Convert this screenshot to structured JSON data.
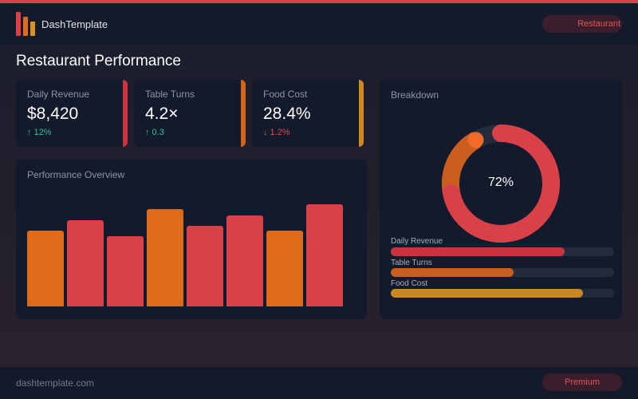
{
  "app": {
    "brand": "DashTemplate",
    "header_badge": "Restaurant",
    "page_title": "Restaurant Performance"
  },
  "colors": {
    "red": "#d94048",
    "orange": "#e06a18",
    "amber": "#c8831e",
    "green": "#2bc48a"
  },
  "kpis": [
    {
      "label": "Daily Revenue",
      "value": "$8,420",
      "delta": "↑ 12%",
      "trend": "up",
      "accent": "#c9343e"
    },
    {
      "label": "Table Turns",
      "value": "4.2×",
      "delta": "↑ 0.3",
      "trend": "up",
      "accent": "#d3641a"
    },
    {
      "label": "Food Cost",
      "value": "28.4%",
      "delta": "↓ 1.2%",
      "trend": "down",
      "accent": "#d08a1c"
    }
  ],
  "performance": {
    "title": "Performance Overview"
  },
  "chart_data": {
    "type": "bar",
    "title": "Performance Overview",
    "categories": [
      "",
      "",
      "",
      "",
      "",
      "",
      "",
      ""
    ],
    "values": [
      74,
      84,
      69,
      95,
      79,
      89,
      74,
      100
    ],
    "colors": [
      "#e06a18",
      "#d94048",
      "#d94048",
      "#e06a18",
      "#d94048",
      "#d94048",
      "#e06a18",
      "#d94048"
    ],
    "ylim": [
      0,
      100
    ],
    "grid": false
  },
  "breakdown": {
    "title": "Breakdown",
    "donut_value": 72,
    "donut_label": "72%",
    "donut_secondary_fraction": 0.2,
    "items": [
      {
        "label": "Daily Revenue",
        "fraction": 0.78,
        "color": "#c9343e"
      },
      {
        "label": "Table Turns",
        "fraction": 0.55,
        "color": "#c95e1e"
      },
      {
        "label": "Food Cost",
        "fraction": 0.86,
        "color": "#c8881e"
      }
    ]
  },
  "footer": {
    "site": "dashtemplate.com",
    "badge": "Premium"
  }
}
